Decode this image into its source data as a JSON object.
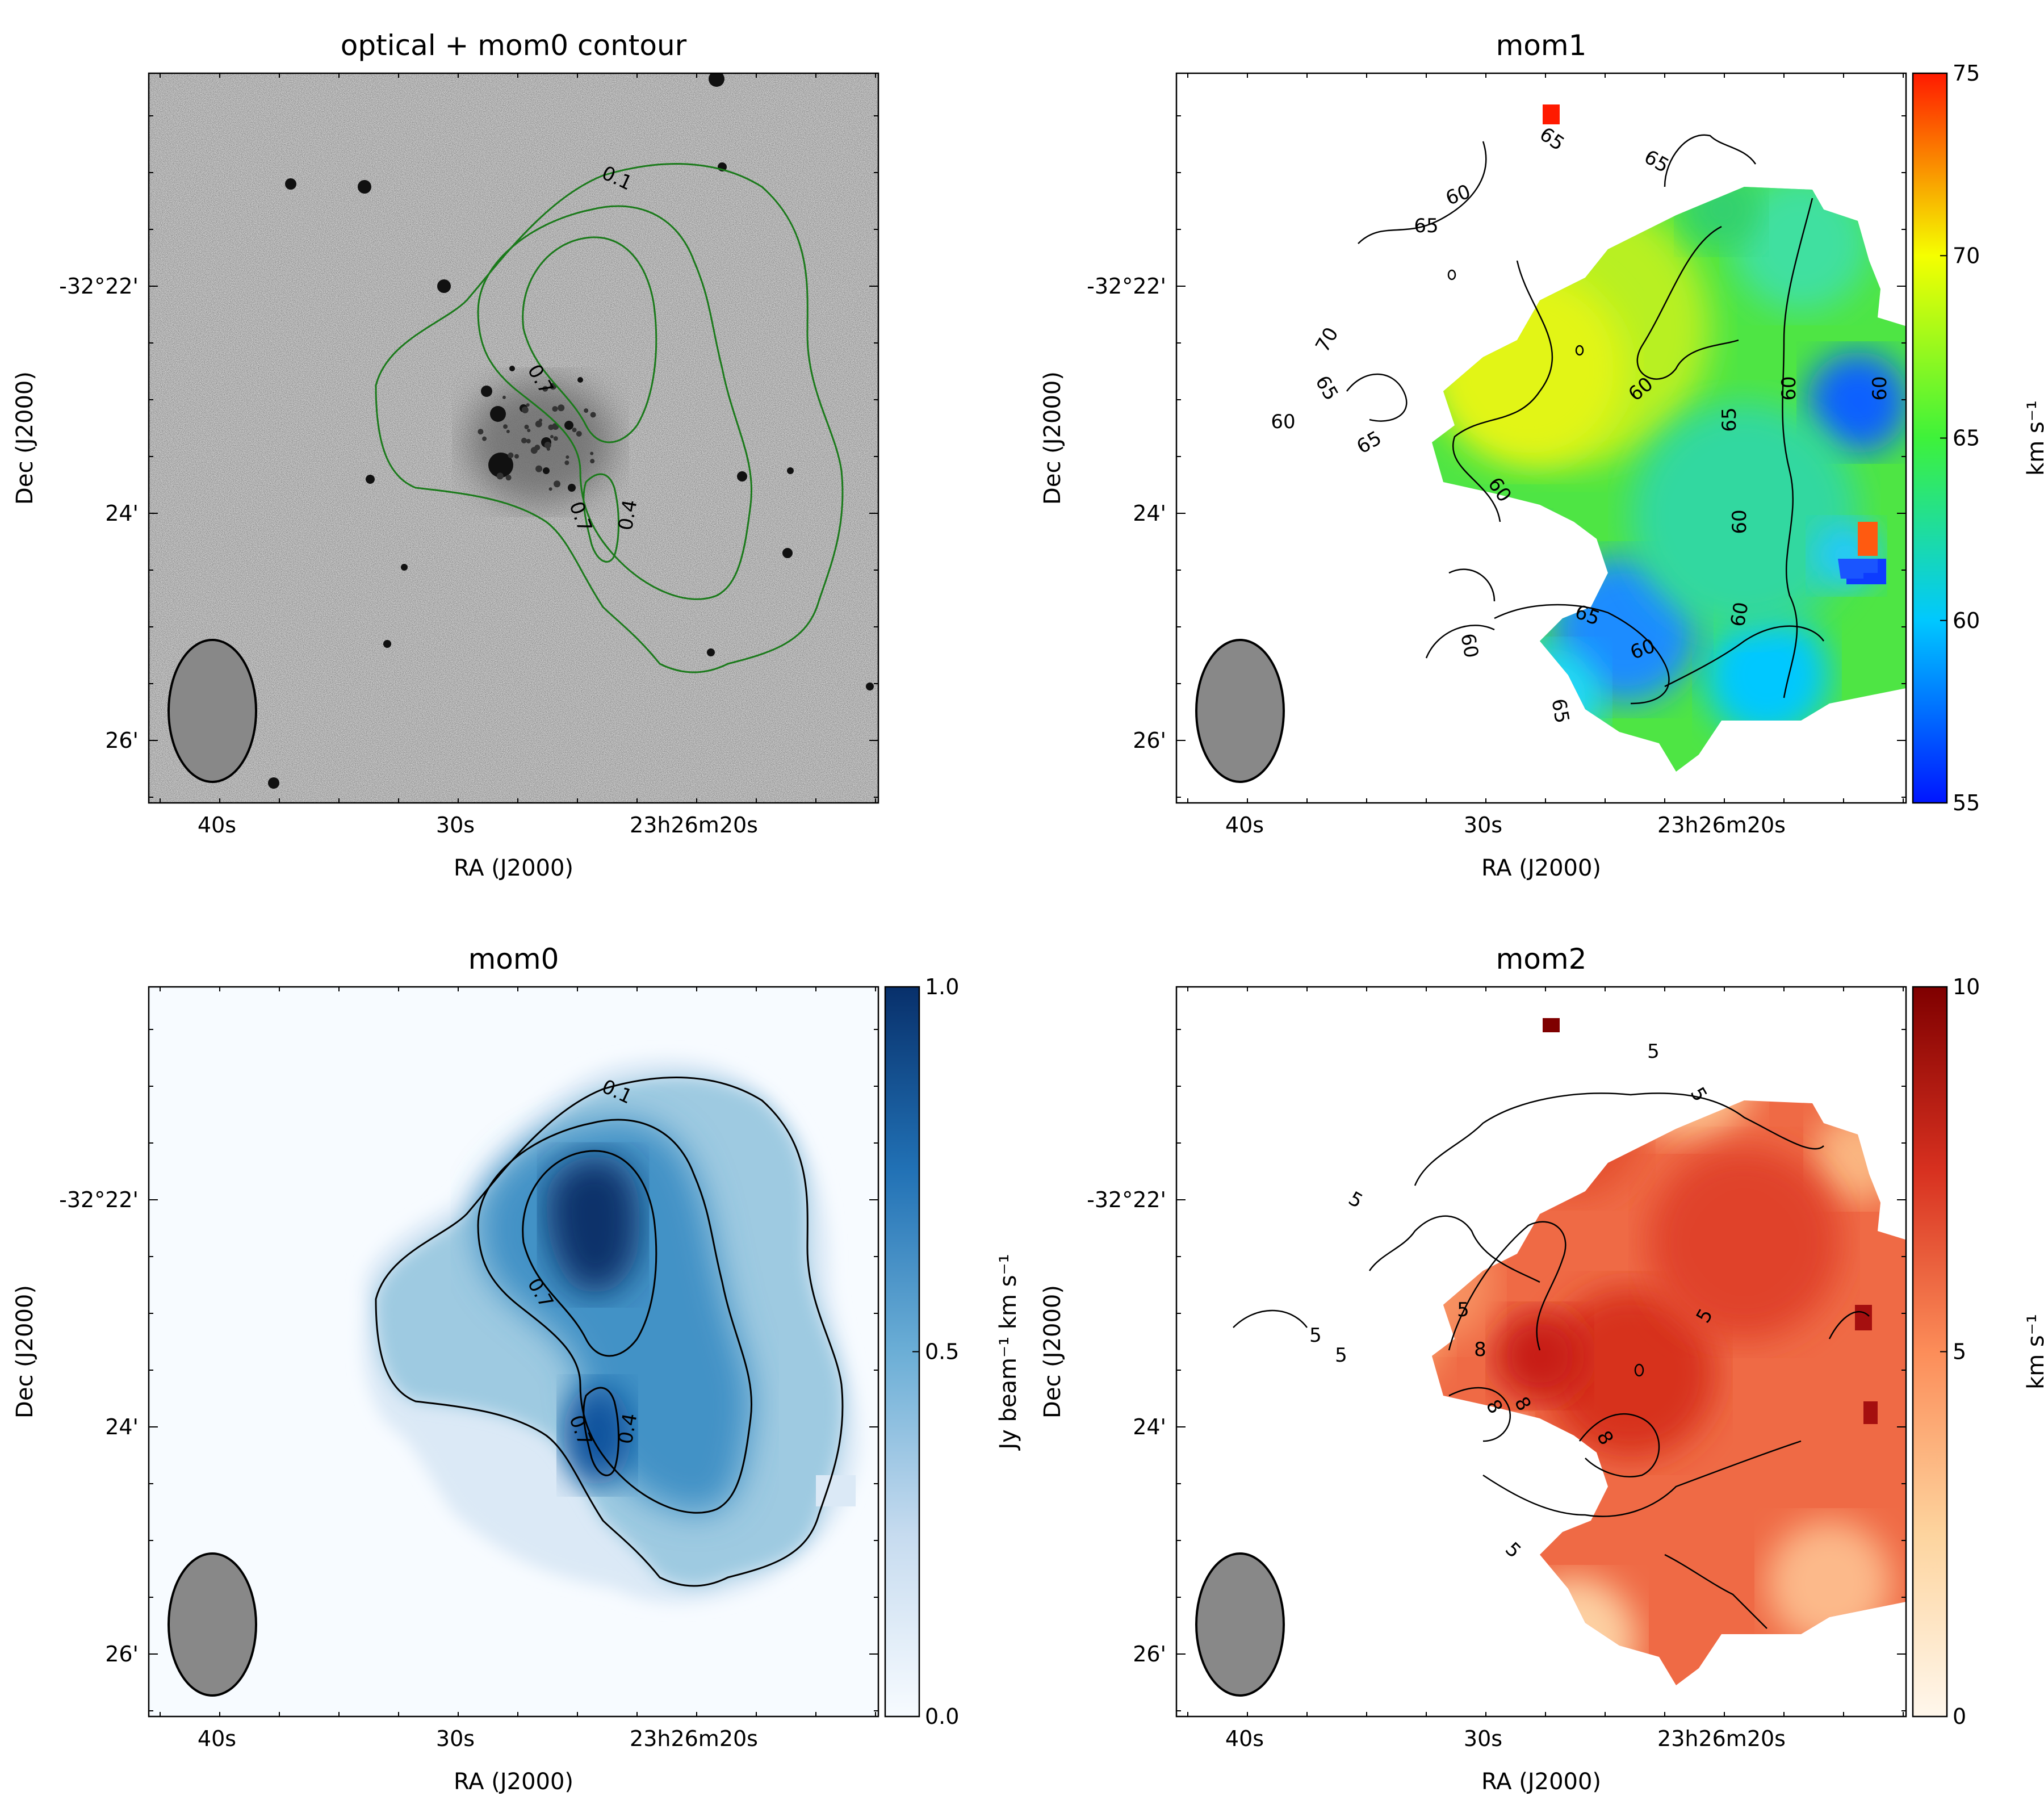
{
  "chart_data": [
    {
      "type": "heatmap",
      "title": "optical + mom0 contour",
      "xlabel": "RA (J2000)",
      "ylabel": "Dec (J2000)",
      "x_ticklabels": [
        "40s",
        "30s",
        "23h26m20s"
      ],
      "y_ticklabels": [
        "-32°22'",
        "24'",
        "26'"
      ],
      "image": "optical greyscale",
      "contour_color": "#1a7a1a",
      "contour_levels": [
        0.1,
        0.4,
        0.7
      ],
      "contour_labels": [
        "0.1",
        "0.7",
        "0.7",
        "0.4"
      ],
      "beam": "grey ellipse, lower-left",
      "colorbar": null
    },
    {
      "type": "heatmap",
      "title": "mom1",
      "xlabel": "RA (J2000)",
      "ylabel": "Dec (J2000)",
      "x_ticklabels": [
        "40s",
        "30s",
        "23h26m20s"
      ],
      "y_ticklabels": [
        "-32°22'",
        "24'",
        "26'"
      ],
      "colormap": "jet",
      "contour_levels": [
        60,
        65,
        70
      ],
      "contour_labels": [
        "65",
        "65",
        "60",
        "65",
        "70",
        "65",
        "60",
        "65",
        "60",
        "65",
        "60",
        "60",
        "60",
        "60",
        "65",
        "60",
        "60",
        "65",
        "60"
      ],
      "beam": "grey ellipse, lower-left",
      "colorbar": {
        "label": "km s⁻¹",
        "range": [
          55,
          75
        ],
        "ticks": [
          "55",
          "60",
          "65",
          "70",
          "75"
        ]
      }
    },
    {
      "type": "heatmap",
      "title": "mom0",
      "xlabel": "RA (J2000)",
      "ylabel": "Dec (J2000)",
      "x_ticklabels": [
        "40s",
        "30s",
        "23h26m20s"
      ],
      "y_ticklabels": [
        "-32°22'",
        "24'",
        "26'"
      ],
      "colormap": "Blues",
      "contour_levels": [
        0.1,
        0.4,
        0.7
      ],
      "contour_labels": [
        "0.1",
        "0.7",
        "0.7",
        "0.4"
      ],
      "beam": "grey ellipse, lower-left",
      "colorbar": {
        "label": "Jy beam⁻¹ km s⁻¹",
        "range": [
          0.0,
          1.0
        ],
        "ticks": [
          "0.0",
          "0.5",
          "1.0"
        ]
      }
    },
    {
      "type": "heatmap",
      "title": "mom2",
      "xlabel": "RA (J2000)",
      "ylabel": "Dec (J2000)",
      "x_ticklabels": [
        "40s",
        "30s",
        "23h26m20s"
      ],
      "y_ticklabels": [
        "-32°22'",
        "24'",
        "26'"
      ],
      "colormap": "OrRd",
      "contour_levels": [
        5,
        8
      ],
      "contour_labels": [
        "5",
        "5",
        "5",
        "5",
        "5",
        "5",
        "8",
        "8",
        "8",
        "8",
        "5",
        "5"
      ],
      "beam": "grey ellipse, lower-left",
      "colorbar": {
        "label": "km s⁻¹",
        "range": [
          0,
          10
        ],
        "ticks": [
          "0",
          "5",
          "10"
        ]
      }
    }
  ]
}
